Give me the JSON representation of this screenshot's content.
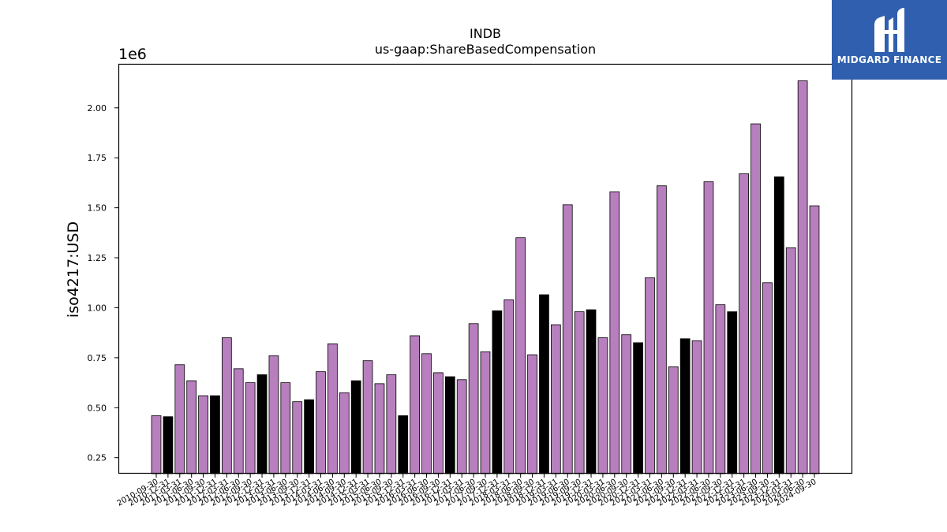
{
  "chart_data": {
    "type": "bar",
    "title": "INDB",
    "subtitle": "us-gaap:ShareBasedCompensation",
    "ylabel": "iso4217:USD",
    "xlabel": "",
    "y_offset_label": "1e6",
    "ylim": [
      170000,
      2220000
    ],
    "yticks": [
      {
        "value": 250000,
        "label": "0.25"
      },
      {
        "value": 500000,
        "label": "0.50"
      },
      {
        "value": 750000,
        "label": "0.75"
      },
      {
        "value": 1000000,
        "label": "1.00"
      },
      {
        "value": 1250000,
        "label": "1.25"
      },
      {
        "value": 1500000,
        "label": "1.50"
      },
      {
        "value": 1750000,
        "label": "1.75"
      },
      {
        "value": 2000000,
        "label": "2.00"
      }
    ],
    "categories": [
      "2010-09-30",
      "2010-12-31",
      "2011-03-31",
      "2011-06-30",
      "2011-09-30",
      "2011-12-31",
      "2012-03-31",
      "2012-06-30",
      "2012-09-30",
      "2012-12-31",
      "2013-03-31",
      "2013-06-30",
      "2013-09-30",
      "2013-12-31",
      "2014-03-31",
      "2014-06-30",
      "2014-09-30",
      "2014-12-31",
      "2015-03-31",
      "2015-06-30",
      "2015-09-30",
      "2015-12-31",
      "2016-03-31",
      "2016-06-30",
      "2016-09-30",
      "2016-12-31",
      "2017-03-31",
      "2017-06-30",
      "2017-09-30",
      "2017-12-31",
      "2018-03-31",
      "2018-06-30",
      "2018-09-30",
      "2018-12-31",
      "2019-03-31",
      "2019-06-30",
      "2019-09-30",
      "2019-12-31",
      "2020-03-31",
      "2020-06-30",
      "2020-09-30",
      "2020-12-31",
      "2021-03-31",
      "2021-06-30",
      "2021-09-30",
      "2021-12-31",
      "2022-03-31",
      "2022-06-30",
      "2022-09-30",
      "2022-12-31",
      "2023-03-31",
      "2023-06-30",
      "2023-09-30",
      "2023-12-31",
      "2024-03-31",
      "2024-06-30",
      "2024-09-30"
    ],
    "values": [
      460000,
      455000,
      715000,
      635000,
      560000,
      560000,
      850000,
      695000,
      625000,
      665000,
      760000,
      625000,
      530000,
      540000,
      680000,
      820000,
      575000,
      635000,
      735000,
      620000,
      665000,
      460000,
      860000,
      770000,
      675000,
      655000,
      640000,
      920000,
      780000,
      985000,
      1040000,
      1350000,
      765000,
      1065000,
      915000,
      1515000,
      980000,
      990000,
      850000,
      1580000,
      865000,
      825000,
      1150000,
      1610000,
      705000,
      845000,
      835000,
      1630000,
      1015000,
      980000,
      1670000,
      1920000,
      1125000,
      1655000,
      1300000,
      2135000,
      1510000
    ],
    "highlight": [
      false,
      true,
      false,
      false,
      false,
      true,
      false,
      false,
      false,
      true,
      false,
      false,
      false,
      true,
      false,
      false,
      false,
      true,
      false,
      false,
      false,
      true,
      false,
      false,
      false,
      true,
      false,
      false,
      false,
      true,
      false,
      false,
      false,
      true,
      false,
      false,
      false,
      true,
      false,
      false,
      false,
      true,
      false,
      false,
      false,
      true,
      false,
      false,
      false,
      true,
      false,
      false,
      false,
      true,
      false,
      false,
      false
    ],
    "colors": {
      "bar": "#b77fbd",
      "highlight": "#000000",
      "edge": "#000000"
    },
    "grid": false
  },
  "logo": {
    "text": "MIDGARD FINANCE",
    "background": "#2f5fae"
  }
}
